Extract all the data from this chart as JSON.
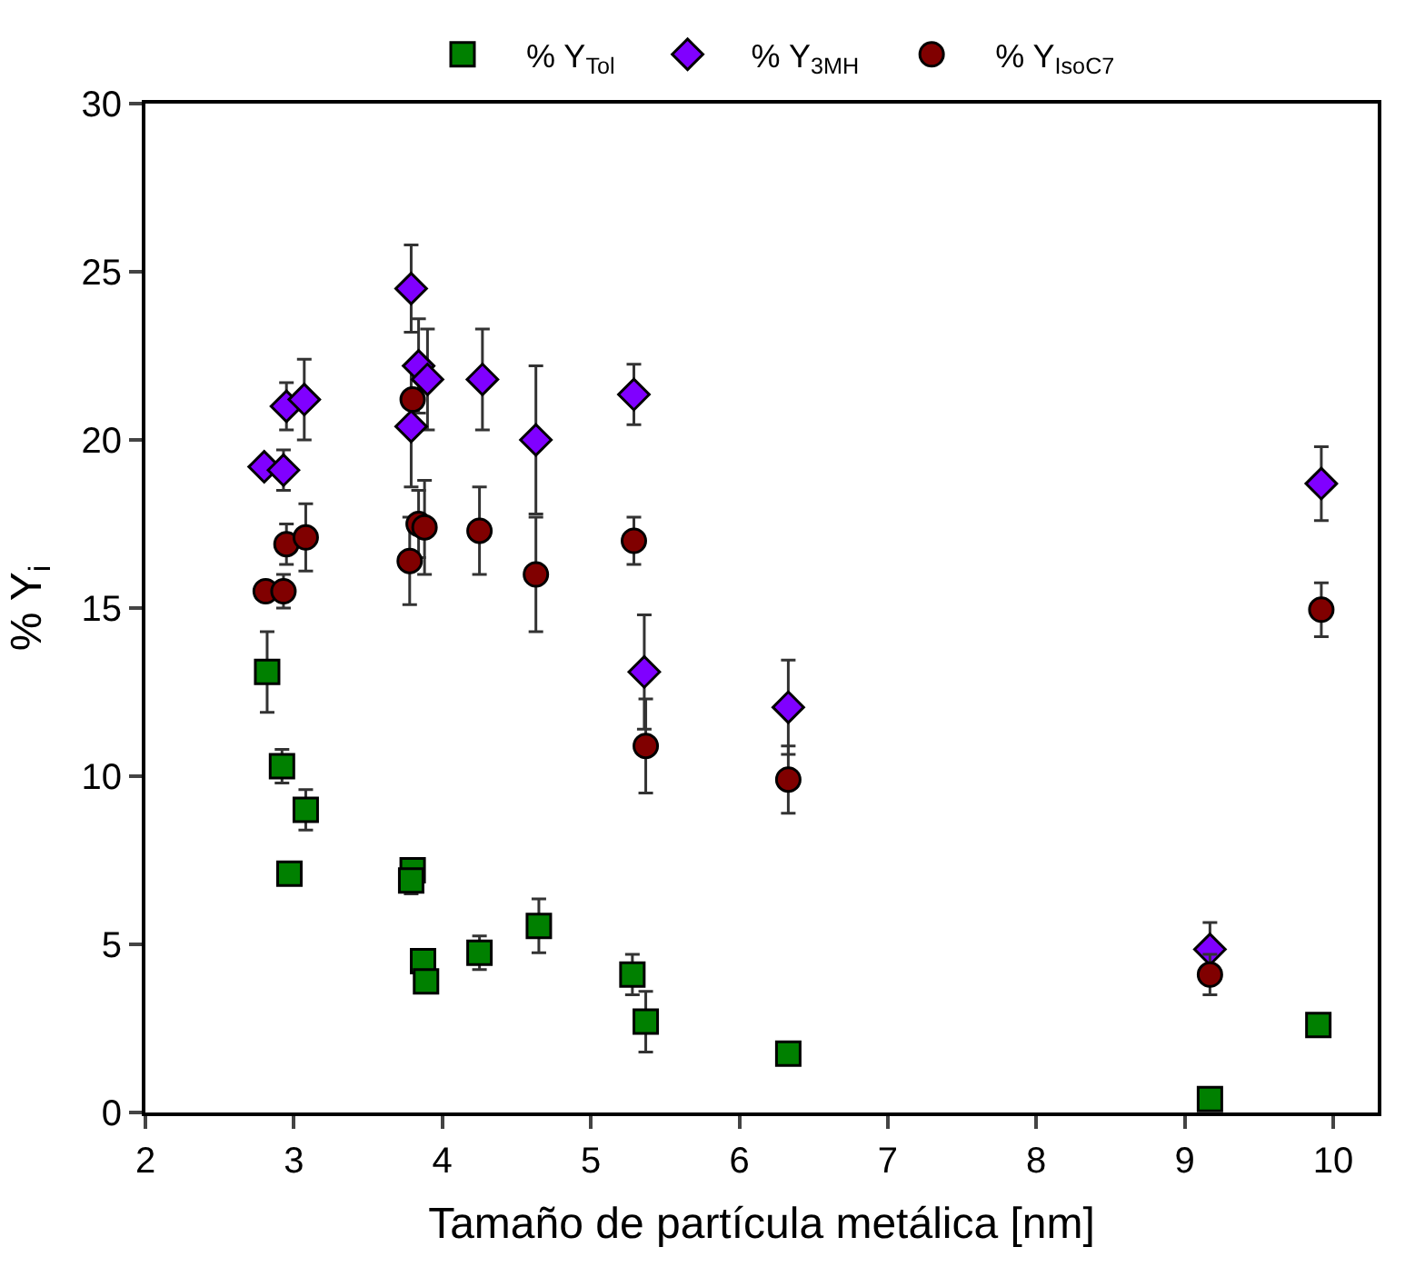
{
  "chart_data": {
    "type": "scatter",
    "xlabel": "Tamaño de partícula metálica [nm]",
    "ylabel": "% Y$_{i}$",
    "xlim": [
      2,
      10.3
    ],
    "xticks": [
      2,
      3,
      4,
      5,
      6,
      7,
      8,
      9,
      10
    ],
    "ylim": [
      0,
      30
    ],
    "yticks": [
      0,
      5,
      10,
      15,
      20,
      25,
      30
    ],
    "legend": "top",
    "series": [
      {
        "name": "% Y$_{Tol}$",
        "color": "#008000",
        "marker": "square",
        "x": [
          2.82,
          2.92,
          3.08,
          2.97,
          3.8,
          3.79,
          3.87,
          3.89,
          4.25,
          4.65,
          5.28,
          5.37,
          6.33,
          9.17,
          9.9
        ],
        "values": [
          13.1,
          10.3,
          9.0,
          7.1,
          7.2,
          6.9,
          4.5,
          3.9,
          4.75,
          5.55,
          4.1,
          2.7,
          1.75,
          0.4,
          2.6
        ],
        "errors": [
          1.2,
          0.5,
          0.6,
          null,
          null,
          0.4,
          null,
          null,
          0.5,
          0.8,
          0.6,
          0.9,
          null,
          null,
          null
        ]
      },
      {
        "name": "% Y$_{3MH}$",
        "color": "#8000ff",
        "marker": "diamond",
        "x": [
          2.8,
          2.93,
          2.95,
          3.07,
          3.79,
          3.84,
          3.9,
          3.79,
          4.27,
          4.63,
          5.29,
          5.36,
          6.33,
          9.17,
          9.92
        ],
        "values": [
          19.2,
          19.1,
          21.0,
          21.2,
          24.5,
          22.2,
          21.8,
          20.4,
          21.8,
          20.0,
          21.35,
          13.1,
          12.05,
          4.85,
          18.7
        ],
        "errors": [
          null,
          0.6,
          0.7,
          1.2,
          1.3,
          1.4,
          1.5,
          1.8,
          1.5,
          2.2,
          0.9,
          1.7,
          1.4,
          0.8,
          1.1
        ]
      },
      {
        "name": "% Y$_{IsoC7}$",
        "color": "#800000",
        "marker": "circle",
        "x": [
          2.81,
          2.93,
          2.95,
          3.08,
          3.8,
          3.84,
          3.88,
          3.78,
          4.25,
          4.63,
          5.29,
          5.37,
          6.33,
          9.17,
          9.92
        ],
        "values": [
          15.5,
          15.5,
          16.9,
          17.1,
          21.2,
          17.5,
          17.4,
          16.4,
          17.3,
          16.0,
          17.0,
          10.9,
          9.9,
          4.1,
          14.95
        ],
        "errors": [
          null,
          0.5,
          0.6,
          1.0,
          null,
          1.0,
          1.4,
          1.3,
          1.3,
          1.7,
          0.7,
          1.4,
          1.0,
          0.6,
          0.8
        ]
      }
    ]
  }
}
